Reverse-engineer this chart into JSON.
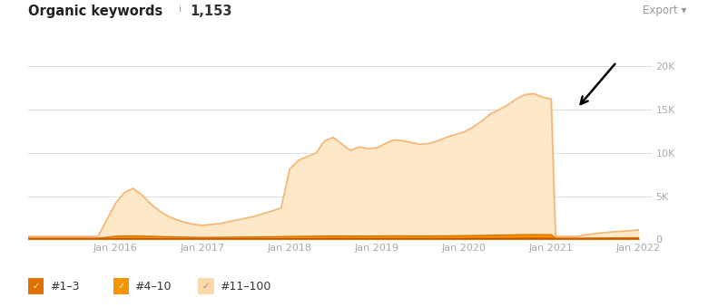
{
  "title": "Organic keywords",
  "title_info": "i",
  "title_count": "1,153",
  "export_text": "Export ▾",
  "ylim": [
    0,
    22000
  ],
  "yticks": [
    0,
    5000,
    10000,
    15000,
    20000
  ],
  "ytick_labels": [
    "0",
    "5K",
    "10K",
    "15K",
    "20K"
  ],
  "xlabel_dates": [
    "Jan 2016",
    "Jan 2017",
    "Jan 2018",
    "Jan 2019",
    "Jan 2020",
    "Jan 2021",
    "Jan 2022"
  ],
  "legend": [
    "#1–3",
    "#4–10",
    "#11–100"
  ],
  "legend_colors_box": [
    "#e07000",
    "#f59300",
    "#fcd9a8"
  ],
  "color_11_100_fill": "#fde8c8",
  "color_11_100_line": "#f5b87a",
  "color_4_10_fill": "#f59300",
  "color_4_10_line": "#e07000",
  "color_1_3_fill": "#e07000",
  "color_1_3_line": "#c05000",
  "background_color": "#ffffff",
  "grid_color": "#e0e0e0",
  "time_points": [
    2015.0,
    2015.2,
    2015.4,
    2015.6,
    2015.8,
    2016.0,
    2016.1,
    2016.2,
    2016.3,
    2016.4,
    2016.5,
    2016.6,
    2016.7,
    2016.8,
    2016.9,
    2017.0,
    2017.1,
    2017.2,
    2017.3,
    2017.4,
    2017.5,
    2017.6,
    2017.7,
    2017.8,
    2017.9,
    2018.0,
    2018.1,
    2018.2,
    2018.3,
    2018.4,
    2018.5,
    2018.6,
    2018.7,
    2018.8,
    2018.9,
    2019.0,
    2019.1,
    2019.2,
    2019.3,
    2019.4,
    2019.5,
    2019.6,
    2019.7,
    2019.8,
    2019.9,
    2020.0,
    2020.1,
    2020.2,
    2020.3,
    2020.4,
    2020.5,
    2020.6,
    2020.7,
    2020.8,
    2020.9,
    2021.0,
    2021.05,
    2021.1,
    2021.2,
    2021.3,
    2021.4,
    2021.5,
    2021.6,
    2021.7,
    2021.8,
    2021.9,
    2022.0
  ],
  "data_11_100": [
    200,
    200,
    200,
    200,
    200,
    3800,
    5000,
    5500,
    4800,
    3800,
    3000,
    2400,
    2000,
    1700,
    1500,
    1400,
    1500,
    1600,
    1800,
    2000,
    2200,
    2400,
    2700,
    3000,
    3300,
    7800,
    8800,
    9200,
    9600,
    11000,
    11400,
    10600,
    9900,
    10300,
    10100,
    10200,
    10700,
    11100,
    11000,
    10800,
    10600,
    10700,
    11000,
    11400,
    11700,
    12000,
    12500,
    13200,
    14000,
    14500,
    15000,
    15700,
    16200,
    16300,
    15900,
    15700,
    200,
    200,
    200,
    200,
    400,
    500,
    600,
    700,
    750,
    800,
    900
  ],
  "data_4_10": [
    100,
    100,
    100,
    100,
    100,
    280,
    310,
    320,
    300,
    280,
    260,
    240,
    220,
    200,
    185,
    175,
    180,
    185,
    192,
    198,
    205,
    215,
    225,
    235,
    248,
    260,
    272,
    282,
    292,
    302,
    312,
    306,
    302,
    307,
    302,
    307,
    312,
    318,
    315,
    312,
    308,
    312,
    318,
    323,
    328,
    335,
    348,
    358,
    370,
    382,
    395,
    405,
    418,
    422,
    418,
    415,
    100,
    100,
    100,
    100,
    105,
    110,
    115,
    120,
    125,
    130,
    140
  ],
  "data_1_3": [
    50,
    50,
    50,
    50,
    50,
    80,
    85,
    88,
    85,
    80,
    75,
    70,
    65,
    60,
    57,
    54,
    56,
    58,
    60,
    62,
    65,
    67,
    70,
    72,
    75,
    78,
    80,
    83,
    85,
    87,
    89,
    87,
    85,
    87,
    85,
    87,
    89,
    91,
    89,
    87,
    86,
    87,
    90,
    92,
    94,
    97,
    100,
    105,
    110,
    116,
    120,
    126,
    131,
    133,
    130,
    128,
    50,
    50,
    50,
    50,
    52,
    54,
    56,
    58,
    60,
    62,
    65
  ]
}
